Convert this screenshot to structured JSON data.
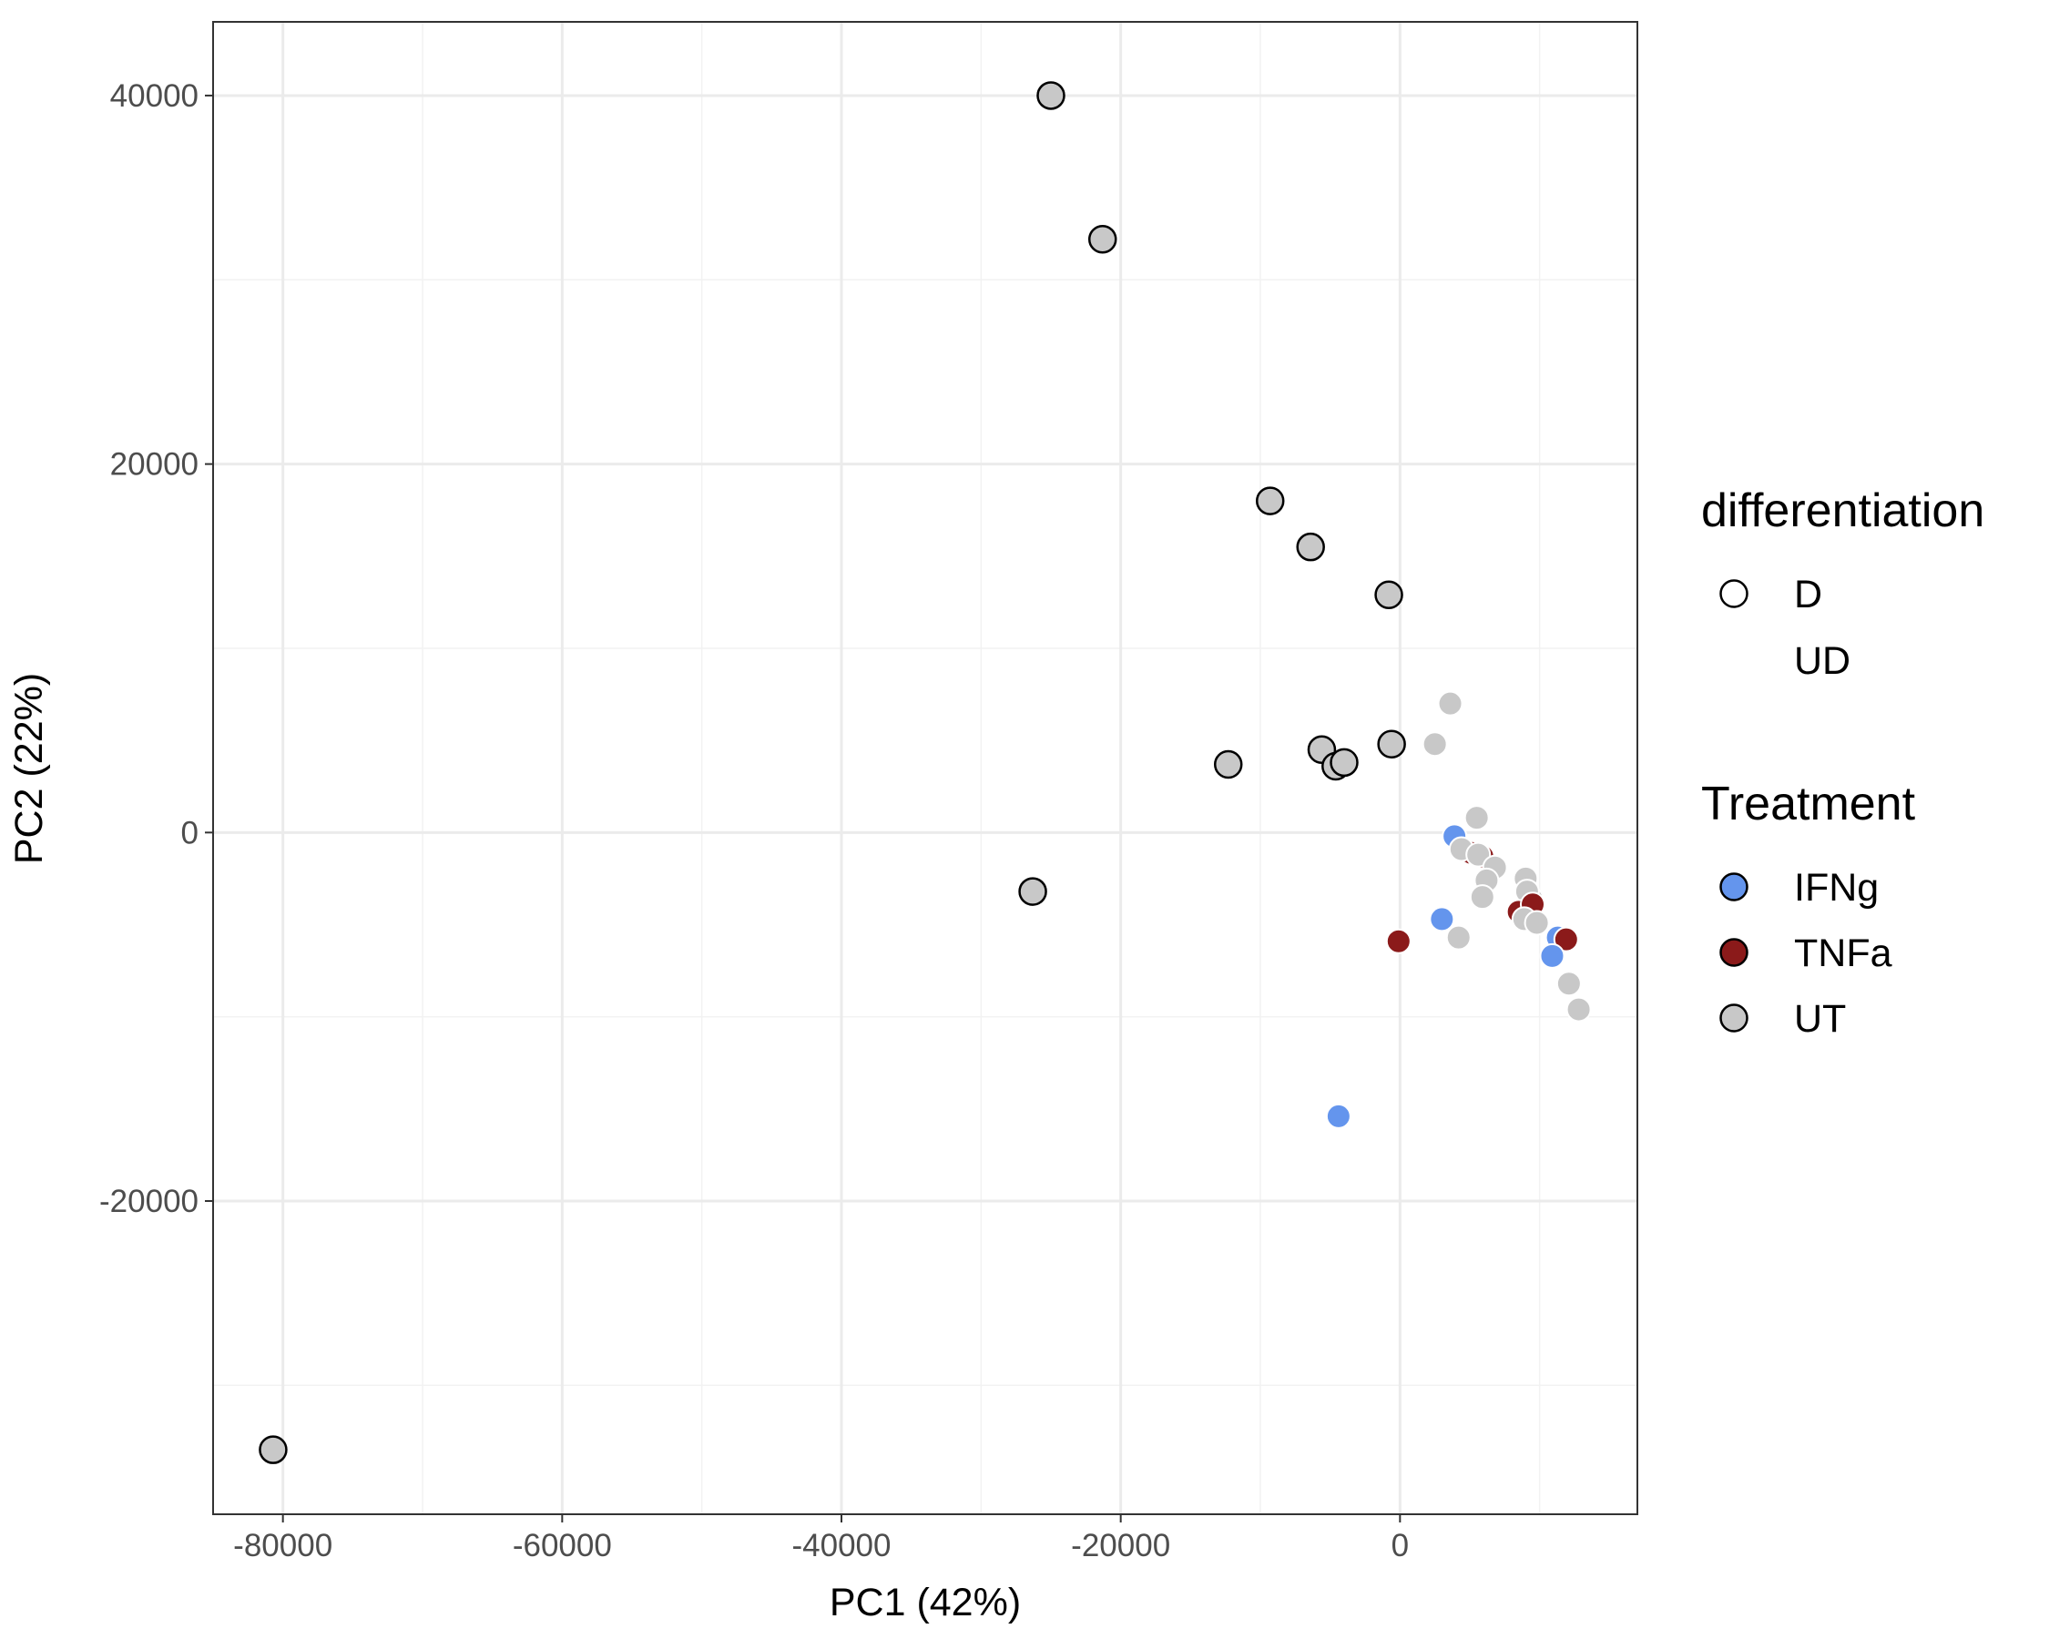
{
  "chart_data": {
    "type": "scatter",
    "xlabel": "PC1 (42%)",
    "ylabel": "PC2 (22%)",
    "xlim": [
      -85000,
      17000
    ],
    "ylim": [
      -37000,
      44000
    ],
    "x_ticks": [
      -80000,
      -60000,
      -40000,
      -20000,
      0
    ],
    "y_ticks": [
      -20000,
      0,
      20000,
      40000
    ],
    "x_minor_ticks": [
      -70000,
      -50000,
      -30000,
      -10000,
      10000
    ],
    "y_minor_ticks": [
      -30000,
      -10000,
      10000,
      30000
    ],
    "grid": true,
    "legend_position": "right",
    "legends": [
      {
        "title": "differentiation",
        "items": [
          {
            "label": "D",
            "shape": "filled-circle-black-outline"
          },
          {
            "label": "UD",
            "shape": "filled-circle-white-outline"
          }
        ]
      },
      {
        "title": "Treatment",
        "items": [
          {
            "label": "IFNg",
            "color": "#6495ED"
          },
          {
            "label": "TNFa",
            "color": "#8B1A1A"
          },
          {
            "label": "UT",
            "color": "#C8C8C8"
          }
        ]
      }
    ],
    "colors": {
      "IFNg": "#6495ED",
      "TNFa": "#8B1A1A",
      "UT": "#C8C8C8"
    },
    "points": [
      {
        "x": -25000,
        "y": 40000,
        "treatment": "UT",
        "differentiation": "D"
      },
      {
        "x": -21300,
        "y": 32200,
        "treatment": "UT",
        "differentiation": "D"
      },
      {
        "x": -9300,
        "y": 18000,
        "treatment": "UT",
        "differentiation": "D"
      },
      {
        "x": -6400,
        "y": 15500,
        "treatment": "UT",
        "differentiation": "D"
      },
      {
        "x": -800,
        "y": 12900,
        "treatment": "UT",
        "differentiation": "D"
      },
      {
        "x": -600,
        "y": 4800,
        "treatment": "UT",
        "differentiation": "D"
      },
      {
        "x": -12300,
        "y": 3700,
        "treatment": "UT",
        "differentiation": "D"
      },
      {
        "x": -5600,
        "y": 4500,
        "treatment": "UT",
        "differentiation": "D"
      },
      {
        "x": -4600,
        "y": 3600,
        "treatment": "UT",
        "differentiation": "D"
      },
      {
        "x": -4000,
        "y": 3800,
        "treatment": "UT",
        "differentiation": "D"
      },
      {
        "x": -26300,
        "y": -3200,
        "treatment": "UT",
        "differentiation": "D"
      },
      {
        "x": -80700,
        "y": -33500,
        "treatment": "UT",
        "differentiation": "D"
      },
      {
        "x": 3600,
        "y": 7000,
        "treatment": "UT",
        "differentiation": "UD"
      },
      {
        "x": 2500,
        "y": 4800,
        "treatment": "UT",
        "differentiation": "UD"
      },
      {
        "x": 5500,
        "y": 800,
        "treatment": "UT",
        "differentiation": "UD"
      },
      {
        "x": 3900,
        "y": -200,
        "treatment": "IFNg",
        "differentiation": "UD"
      },
      {
        "x": 5100,
        "y": -1100,
        "treatment": "TNFa",
        "differentiation": "UD"
      },
      {
        "x": 5900,
        "y": -1300,
        "treatment": "TNFa",
        "differentiation": "UD"
      },
      {
        "x": 4400,
        "y": -900,
        "treatment": "UT",
        "differentiation": "UD"
      },
      {
        "x": 5600,
        "y": -1200,
        "treatment": "UT",
        "differentiation": "UD"
      },
      {
        "x": 6800,
        "y": -1900,
        "treatment": "UT",
        "differentiation": "UD"
      },
      {
        "x": 6200,
        "y": -2600,
        "treatment": "UT",
        "differentiation": "UD"
      },
      {
        "x": 5900,
        "y": -3500,
        "treatment": "UT",
        "differentiation": "UD"
      },
      {
        "x": 9000,
        "y": -2500,
        "treatment": "UT",
        "differentiation": "UD"
      },
      {
        "x": 9400,
        "y": -3600,
        "treatment": "UT",
        "differentiation": "UD"
      },
      {
        "x": 9100,
        "y": -3200,
        "treatment": "UT",
        "differentiation": "UD"
      },
      {
        "x": 3000,
        "y": -4700,
        "treatment": "IFNg",
        "differentiation": "UD"
      },
      {
        "x": 8500,
        "y": -4300,
        "treatment": "TNFa",
        "differentiation": "UD"
      },
      {
        "x": 9500,
        "y": -3900,
        "treatment": "TNFa",
        "differentiation": "UD"
      },
      {
        "x": 8900,
        "y": -4700,
        "treatment": "UT",
        "differentiation": "UD"
      },
      {
        "x": 9800,
        "y": -4900,
        "treatment": "UT",
        "differentiation": "UD"
      },
      {
        "x": -100,
        "y": -5900,
        "treatment": "TNFa",
        "differentiation": "UD"
      },
      {
        "x": 4200,
        "y": -5700,
        "treatment": "UT",
        "differentiation": "UD"
      },
      {
        "x": 11300,
        "y": -5700,
        "treatment": "IFNg",
        "differentiation": "UD"
      },
      {
        "x": 11900,
        "y": -5800,
        "treatment": "TNFa",
        "differentiation": "UD"
      },
      {
        "x": 10900,
        "y": -6700,
        "treatment": "IFNg",
        "differentiation": "UD"
      },
      {
        "x": 12100,
        "y": -8200,
        "treatment": "UT",
        "differentiation": "UD"
      },
      {
        "x": 12800,
        "y": -9600,
        "treatment": "UT",
        "differentiation": "UD"
      },
      {
        "x": -4400,
        "y": -15400,
        "treatment": "IFNg",
        "differentiation": "UD"
      }
    ]
  }
}
